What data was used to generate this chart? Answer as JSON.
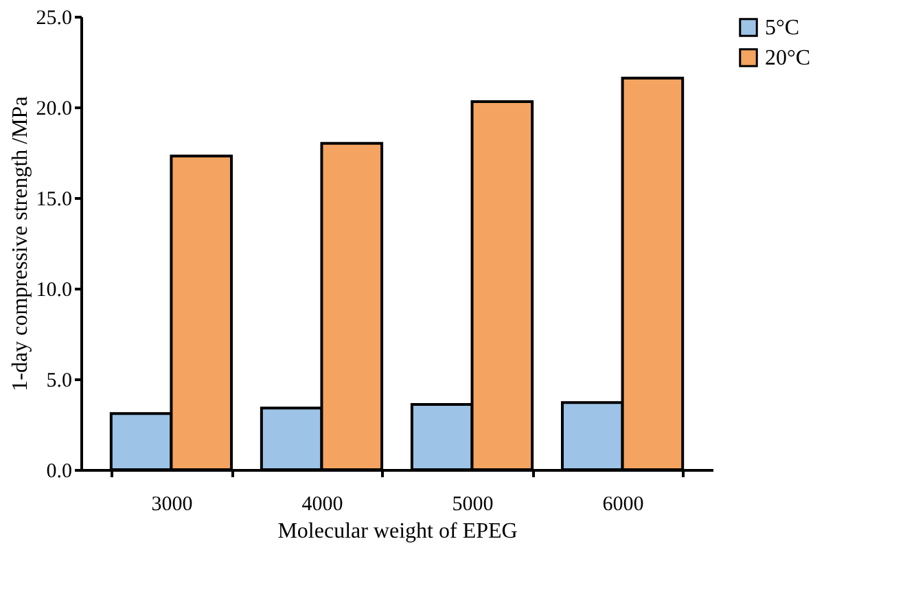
{
  "chart_data": {
    "type": "bar",
    "xlabel": "Molecular weight of EPEG",
    "ylabel": "1-day compressive strength /MPa",
    "categories": [
      "3000",
      "4000",
      "5000",
      "6000"
    ],
    "series": [
      {
        "name": "5°C",
        "color": "#9dc3e6",
        "values": [
          3.1,
          3.4,
          3.6,
          3.7
        ]
      },
      {
        "name": "20°C",
        "color": "#f4a460",
        "values": [
          17.3,
          18.0,
          20.3,
          21.6
        ]
      }
    ],
    "ylim": [
      0,
      25
    ],
    "yticks": [
      {
        "value": 0,
        "label": "0.0"
      },
      {
        "value": 5,
        "label": "5.0"
      },
      {
        "value": 10,
        "label": "10.0"
      },
      {
        "value": 15,
        "label": "15.0"
      },
      {
        "value": 20,
        "label": "20.0"
      },
      {
        "value": 25,
        "label": "25.0"
      }
    ],
    "grid": false,
    "legend": "right"
  }
}
